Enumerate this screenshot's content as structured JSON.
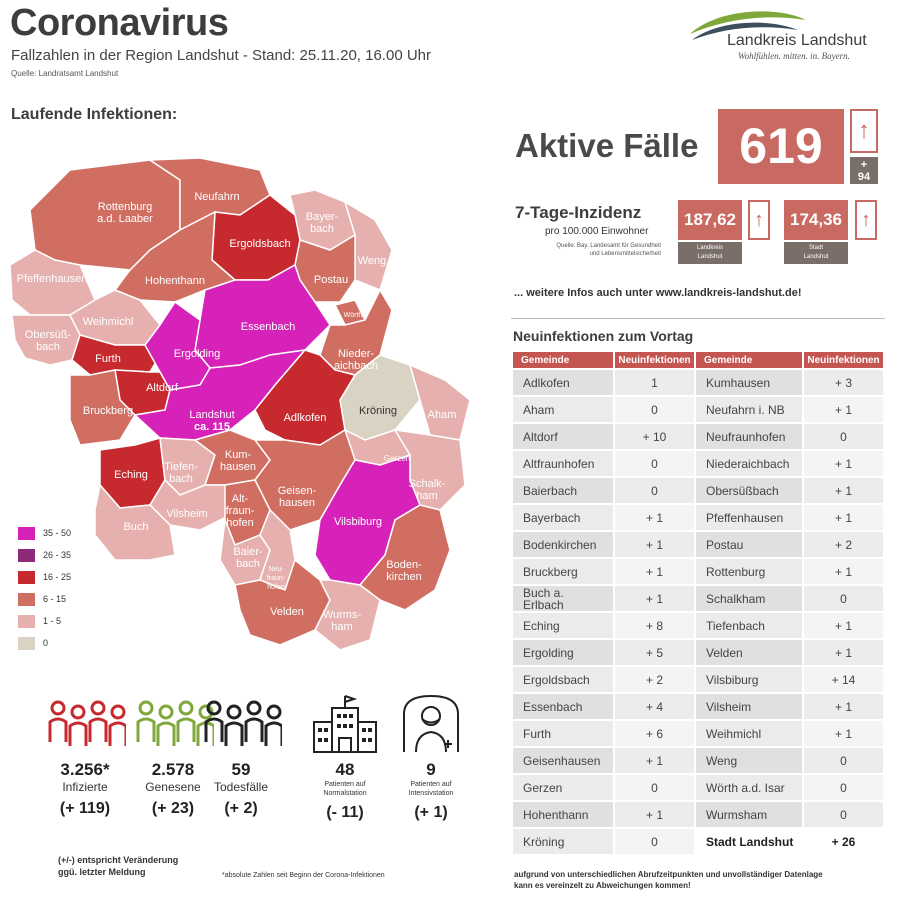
{
  "header": {
    "title": "Coronavirus",
    "subtitle": "Fallzahlen in der Region Landshut - Stand: 25.11.20, 16.00 Uhr",
    "source": "Quelle: Landratsamt Landshut"
  },
  "logo": {
    "title": "Landkreis Landshut",
    "slogan": "Wohlfühlen. mitten. in. Bayern."
  },
  "map": {
    "heading": "Laufende Infektionen:",
    "colors": {
      "c35_50": "#d622b9",
      "c26_35": "#8e2a79",
      "c16_25": "#c62a2f",
      "c6_15": "#d06e62",
      "c1_5": "#e6b0ae",
      "c0": "#d9d3c3"
    },
    "legend": [
      {
        "label": "35 - 50",
        "color": "#d622b9"
      },
      {
        "label": "26 - 35",
        "color": "#8e2a79"
      },
      {
        "label": "16 - 25",
        "color": "#c62a2f"
      },
      {
        "label": "6 - 15",
        "color": "#d06e62"
      },
      {
        "label": "1 - 5",
        "color": "#e6b0ae"
      },
      {
        "label": "0",
        "color": "#d9d3c3"
      }
    ],
    "labels": {
      "rottenburg_1": "Rottenburg",
      "rottenburg_2": "a.d. Laaber",
      "neufahrn": "Neufahrn",
      "bayerbach_1": "Bayer-",
      "bayerbach_2": "bach",
      "ergoldsbach": "Ergoldsbach",
      "weng": "Weng",
      "pfeffenhausen": "Pfeffenhausen",
      "hohenthann": "Hohenthann",
      "postau": "Postau",
      "woerth": "Wörth",
      "obersuessbach_1": "Obersüß-",
      "obersuessbach_2": "bach",
      "weihmichl": "Weihmichl",
      "essenbach": "Essenbach",
      "niederaichbach_1": "Nieder-",
      "niederaichbach_2": "aichbach",
      "furth": "Furth",
      "ergolding": "Ergolding",
      "altdorf": "Altdorf",
      "kroening": "Kröning",
      "aham": "Aham",
      "bruckberg": "Bruckberg",
      "landshut_1": "Landshut",
      "landshut_2": "ca. 115",
      "adlkofen": "Adlkofen",
      "gerzen": "Gerzen",
      "eching": "Eching",
      "tiefenbach_1": "Tiefen-",
      "tiefenbach_2": "bach",
      "kumhausen_1": "Kum-",
      "kumhausen_2": "hausen",
      "schalkham_1": "Schalk-",
      "schalkham_2": "ham",
      "geisenhausen_1": "Geisen-",
      "geisenhausen_2": "hausen",
      "vilsheim": "Vilsheim",
      "altfraunhofen_1": "Alt-",
      "altfraunhofen_2": "fraun-",
      "altfraunhofen_3": "hofen",
      "vilsbiburg": "Vilsbiburg",
      "buch": "Buch",
      "baierbach_1": "Baier-",
      "baierbach_2": "bach",
      "neufraunhofen_1": "Neu-",
      "neufraunhofen_2": "fraun-",
      "neufraunhofen_3": "hofen",
      "bodenkirchen_1": "Boden-",
      "bodenkirchen_2": "kirchen",
      "velden": "Velden",
      "wurmsham_1": "Wurms-",
      "wurmsham_2": "ham"
    }
  },
  "active": {
    "label": "Aktive Fälle",
    "value": "619",
    "change": "+\n94"
  },
  "incidence": {
    "title": "7-Tage-Inzidenz",
    "subtitle": "pro 100.000 Einwohner",
    "source_1": "Quelle: Bay. Landesamt für Gesundheit",
    "source_2": "und Lebensmittelsicherheit",
    "landkreis_value": "187,62",
    "landkreis_label_1": "Landkreis",
    "landkreis_label_2": "Landshut",
    "stadt_value": "174,36",
    "stadt_label_1": "Stadt",
    "stadt_label_2": "Landshut"
  },
  "more_info": "... weitere Infos auch unter www.landkreis-landshut.de!",
  "new_infections": {
    "heading": "Neuinfektionen zum Vortag",
    "headers": [
      "Gemeinde",
      "Neuinfektionen",
      "Gemeinde",
      "Neuinfektionen"
    ],
    "rows": [
      [
        "Adlkofen",
        "1",
        "Kumhausen",
        "+ 3"
      ],
      [
        "Aham",
        "0",
        "Neufahrn i. NB",
        "+ 1"
      ],
      [
        "Altdorf",
        "+ 10",
        "Neufraunhofen",
        "0"
      ],
      [
        "Altfraunhofen",
        "0",
        "Niederaichbach",
        "+ 1"
      ],
      [
        "Baierbach",
        "0",
        "Obersüßbach",
        "+ 1"
      ],
      [
        "Bayerbach",
        "+ 1",
        "Pfeffenhausen",
        "+ 1"
      ],
      [
        "Bodenkirchen",
        "+ 1",
        "Postau",
        "+ 2"
      ],
      [
        "Bruckberg",
        "+ 1",
        "Rottenburg",
        "+ 1"
      ],
      [
        "Buch a.\nErlbach",
        "+ 1",
        "Schalkham",
        "0"
      ],
      [
        "Eching",
        "+ 8",
        "Tiefenbach",
        "+ 1"
      ],
      [
        "Ergolding",
        "+ 5",
        "Velden",
        "+ 1"
      ],
      [
        "Ergoldsbach",
        "+ 2",
        "Vilsbiburg",
        "+ 14"
      ],
      [
        "Essenbach",
        "+ 4",
        "Vilsheim",
        "+ 1"
      ],
      [
        "Furth",
        "+ 6",
        "Weihmichl",
        "+ 1"
      ],
      [
        "Geisenhausen",
        "+ 1",
        "Weng",
        "0"
      ],
      [
        "Gerzen",
        "0",
        "Wörth a.d. Isar",
        "0"
      ],
      [
        "Hohenthann",
        "+ 1",
        "Wurmsham",
        "0"
      ],
      [
        "Kröning",
        "0",
        "Stadt Landshut",
        "+ 26"
      ]
    ],
    "footnote_1": "aufgrund von unterschiedlichen Abrufzeitpunkten und unvollständiger Datenlage",
    "footnote_2": "kann es vereinzelt zu Abweichungen kommen!"
  },
  "stats": [
    {
      "icon": "people-red-icon",
      "value": "3.256*",
      "label_1": "Infizierte",
      "label_2": "",
      "change": "(+ 119)",
      "color": "#c62a2f"
    },
    {
      "icon": "people-green-icon",
      "value": "2.578",
      "label_1": "Genesene",
      "label_2": "",
      "change": "(+ 23)",
      "color": "#7fa83a"
    },
    {
      "icon": "people-black-icon",
      "value": "59",
      "label_1": "Todesfälle",
      "label_2": "",
      "change": "(+ 2)",
      "color": "#222222"
    },
    {
      "icon": "hospital-icon",
      "value": "48",
      "label_1": "Patienten auf",
      "label_2": "Normalstation",
      "change": "(- 11)",
      "color": "#222222"
    },
    {
      "icon": "icu-patient-icon",
      "value": "9",
      "label_1": "Patienten auf",
      "label_2": "Intensivstation",
      "change": "(+ 1)",
      "color": "#222222"
    }
  ],
  "notes": {
    "change_1": "(+/-) entspricht Veränderung",
    "change_2": "ggü. letzter Meldung",
    "absolute": "*absolute Zahlen seit Beginn der Corona-Infektionen"
  }
}
